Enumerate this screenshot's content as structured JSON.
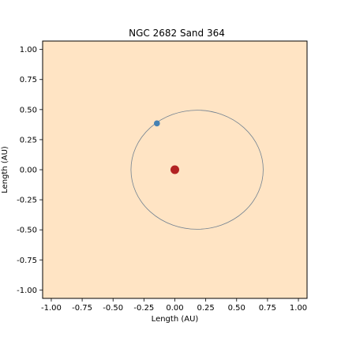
{
  "chart_data": {
    "type": "scatter",
    "title": "NGC 2682 Sand 364",
    "xlabel": "Length (AU)",
    "ylabel": "Length (AU)",
    "xlim": [
      -1.07,
      1.07
    ],
    "ylim": [
      -1.07,
      1.07
    ],
    "xticks": [
      "-1.00",
      "-0.75",
      "-0.50",
      "-0.25",
      "0.00",
      "0.25",
      "0.50",
      "0.75",
      "1.00"
    ],
    "yticks": [
      "-1.00",
      "-0.75",
      "-0.50",
      "-0.25",
      "0.00",
      "0.25",
      "0.50",
      "0.75",
      "1.00"
    ],
    "grid": false,
    "background_color": "#ffe4c4",
    "orbit": {
      "center_x": 0.18,
      "center_y": 0.0,
      "semi_major_x": 0.535,
      "semi_minor_y": 0.495,
      "color": "#708090"
    },
    "primary_star": {
      "x": 0.0,
      "y": 0.0,
      "color": "#b22222"
    },
    "companion": {
      "x": -0.145,
      "y": 0.385,
      "color": "#4682b4"
    }
  }
}
